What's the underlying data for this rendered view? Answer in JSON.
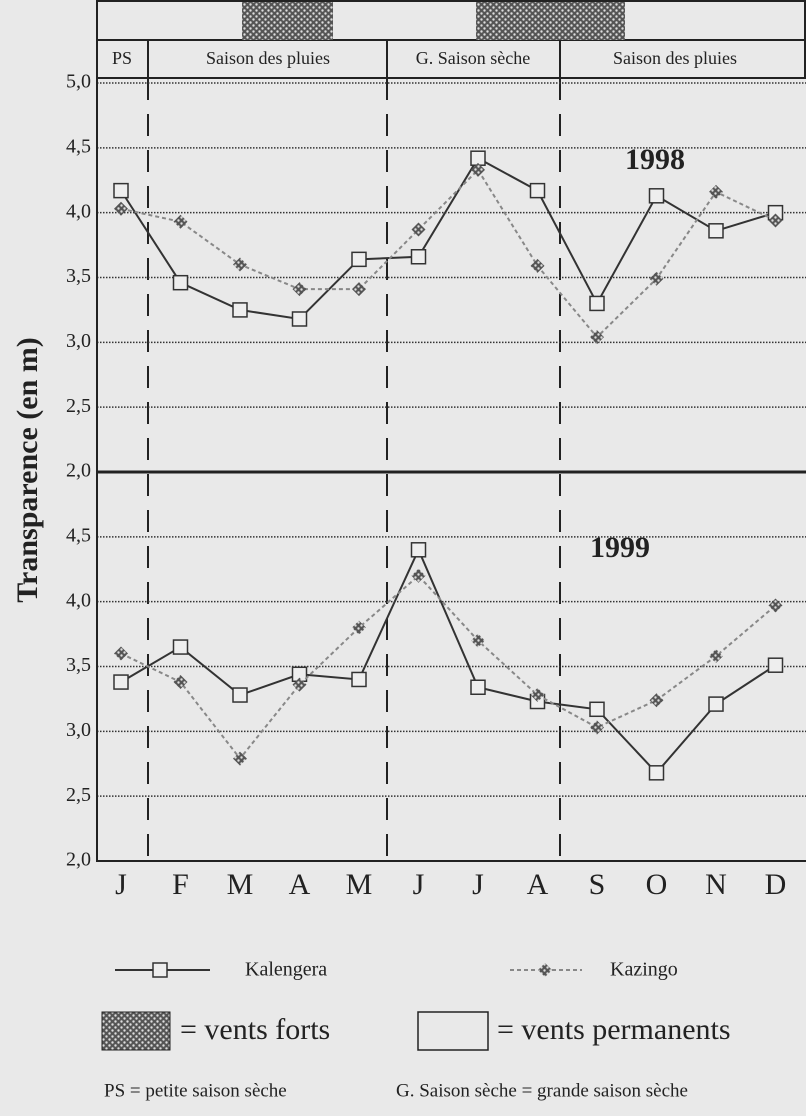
{
  "header": {
    "seasons": [
      "PS",
      "Saison des pluies",
      "G. Saison sèche",
      "Saison des pluies"
    ]
  },
  "chart_data": [
    {
      "type": "line",
      "ylabel": "Transparence (en m)",
      "annotation": "1998",
      "ylim": [
        2,
        5
      ],
      "yticks": [
        {
          "value": 2,
          "label": "2,0"
        },
        {
          "value": 2.5,
          "label": "2,5"
        },
        {
          "value": 3,
          "label": "3,0"
        },
        {
          "value": 3.5,
          "label": "3,5"
        },
        {
          "value": 4,
          "label": "4,0"
        },
        {
          "value": 4.5,
          "label": "4,5"
        },
        {
          "value": 5,
          "label": "5,0"
        }
      ],
      "grid": true,
      "series": [
        {
          "name": "Kalengera",
          "color": "#333333",
          "values": [
            4.17,
            3.46,
            3.25,
            3.18,
            3.64,
            3.66,
            4.42,
            4.17,
            3.3,
            4.13,
            3.86,
            4.0
          ]
        },
        {
          "name": "Kazingo",
          "color": "#888888",
          "values": [
            4.03,
            3.93,
            3.6,
            3.41,
            3.41,
            3.87,
            4.33,
            3.59,
            3.04,
            3.49,
            4.16,
            3.94
          ]
        }
      ]
    },
    {
      "type": "line",
      "annotation": "1999",
      "categories": [
        "J",
        "F",
        "M",
        "A",
        "M",
        "J",
        "J",
        "A",
        "S",
        "O",
        "N",
        "D"
      ],
      "ylim": [
        2,
        5
      ],
      "yticks": [
        {
          "value": 2,
          "label": "2,0"
        },
        {
          "value": 2.5,
          "label": "2,5"
        },
        {
          "value": 3,
          "label": "3,0"
        },
        {
          "value": 3.5,
          "label": "3,5"
        },
        {
          "value": 4,
          "label": "4,0"
        },
        {
          "value": 4.5,
          "label": "4,5"
        }
      ],
      "grid": true,
      "series": [
        {
          "name": "Kalengera",
          "color": "#333333",
          "values": [
            3.38,
            3.65,
            3.28,
            3.44,
            3.4,
            4.4,
            3.34,
            3.23,
            3.17,
            2.68,
            3.21,
            3.51
          ]
        },
        {
          "name": "Kazingo",
          "color": "#888888",
          "values": [
            3.6,
            3.38,
            2.79,
            3.36,
            3.8,
            4.2,
            3.7,
            3.28,
            3.03,
            3.24,
            3.58,
            3.97
          ]
        }
      ]
    }
  ],
  "legend": {
    "strong_winds": "= vents forts",
    "permanent_winds": "= vents permanents"
  },
  "footnotes": [
    "PS = petite saison sèche",
    "G. Saison sèche = grande saison sèche"
  ]
}
